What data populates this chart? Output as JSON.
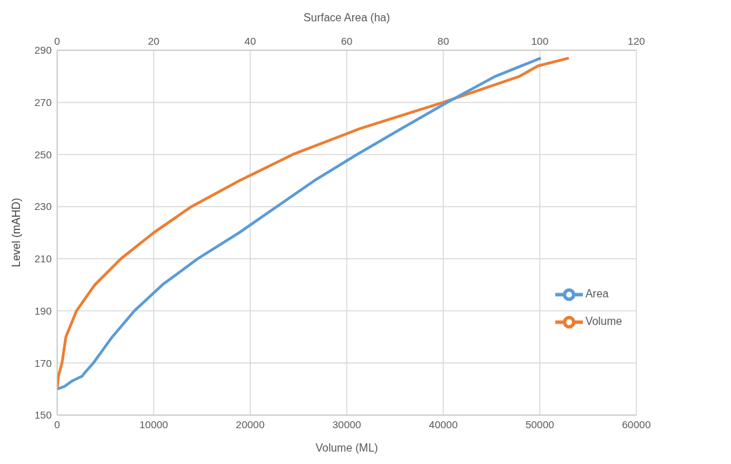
{
  "chart_data": {
    "type": "line",
    "xlabel": "Volume (ML)",
    "x2label": "Surface Area (ha)",
    "ylabel": "Level (mAHD)",
    "xlim": [
      0,
      60000
    ],
    "xticks": [
      0,
      10000,
      20000,
      30000,
      40000,
      50000,
      60000
    ],
    "x2lim": [
      0,
      120
    ],
    "x2ticks": [
      0,
      20,
      40,
      60,
      80,
      100,
      120
    ],
    "ylim": [
      150,
      290
    ],
    "yticks": [
      150,
      170,
      190,
      210,
      230,
      250,
      270,
      290
    ],
    "grid": true,
    "legend": "right",
    "marker": "none",
    "line_style": "solid",
    "series": [
      {
        "name": "Volume",
        "color": "#ed7d31",
        "x": [
          0,
          130,
          500,
          900,
          2000,
          3900,
          6600,
          10000,
          13900,
          18900,
          24400,
          31400,
          40000,
          47900,
          49800,
          53000
        ],
        "values": [
          160,
          165,
          170,
          180,
          190,
          200,
          210,
          220,
          230,
          240,
          250,
          260,
          270,
          280,
          284,
          287
        ]
      },
      {
        "name": "Area",
        "color": "#5b9bd5",
        "axis": "x2",
        "x": [
          0,
          1.5,
          3,
          4.1,
          5.2,
          5.6,
          7.5,
          11.4,
          16,
          21.8,
          29.1,
          37.7,
          45.5,
          53.3,
          62.1,
          71.4,
          80.8,
          90.8,
          100.2
        ],
        "values": [
          160,
          161,
          163,
          164,
          165,
          166,
          170,
          180,
          190,
          200,
          210,
          220,
          230,
          240,
          250,
          260,
          270,
          280,
          287
        ]
      }
    ]
  }
}
